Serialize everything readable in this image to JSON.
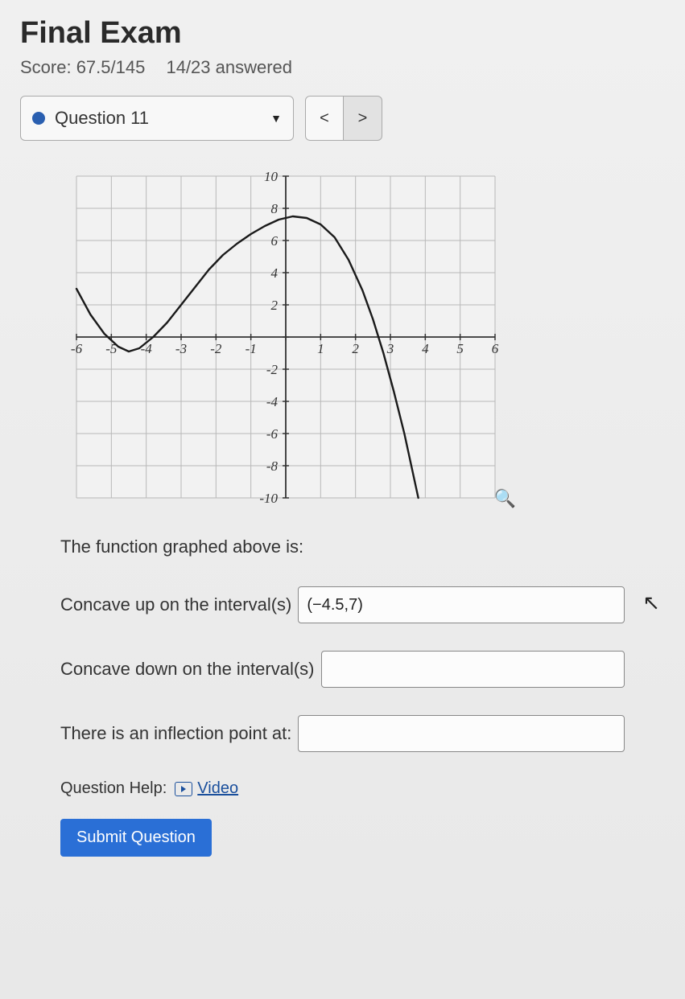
{
  "header": {
    "title": "Final Exam",
    "score_label": "Score: 67.5/145",
    "answered_label": "14/23 answered"
  },
  "nav": {
    "question_label": "Question 11",
    "prev_glyph": "<",
    "next_glyph": ">"
  },
  "graph": {
    "type": "line",
    "xlim": [
      -6,
      6
    ],
    "ylim": [
      -10,
      10
    ],
    "xtick_step": 1,
    "ytick_step": 2,
    "x_ticks": [
      -6,
      -5,
      -4,
      -3,
      -2,
      -1,
      1,
      2,
      3,
      4,
      5,
      6
    ],
    "y_ticks": [
      -10,
      -8,
      -6,
      -4,
      -2,
      2,
      4,
      6,
      8,
      10
    ],
    "grid_color": "#b8b8b8",
    "axis_color": "#333333",
    "curve_color": "#1a1a1a",
    "curve_width": 2.4,
    "background_color": "#f2f2f2",
    "label_font": "italic 17px serif",
    "label_color": "#333333",
    "points": [
      [
        -6.0,
        3.0
      ],
      [
        -5.6,
        1.4
      ],
      [
        -5.2,
        0.2
      ],
      [
        -4.8,
        -0.6
      ],
      [
        -4.5,
        -0.9
      ],
      [
        -4.2,
        -0.7
      ],
      [
        -3.8,
        0.0
      ],
      [
        -3.4,
        0.9
      ],
      [
        -3.0,
        2.0
      ],
      [
        -2.6,
        3.1
      ],
      [
        -2.2,
        4.2
      ],
      [
        -1.8,
        5.1
      ],
      [
        -1.4,
        5.8
      ],
      [
        -1.0,
        6.4
      ],
      [
        -0.6,
        6.9
      ],
      [
        -0.2,
        7.3
      ],
      [
        0.2,
        7.5
      ],
      [
        0.6,
        7.4
      ],
      [
        1.0,
        7.0
      ],
      [
        1.4,
        6.2
      ],
      [
        1.8,
        4.8
      ],
      [
        2.2,
        2.9
      ],
      [
        2.5,
        1.1
      ],
      [
        2.8,
        -1.0
      ],
      [
        3.1,
        -3.4
      ],
      [
        3.4,
        -6.0
      ],
      [
        3.6,
        -8.0
      ],
      [
        3.8,
        -10.0
      ]
    ]
  },
  "question": {
    "prompt": "The function graphed above is:",
    "rows": [
      {
        "label": "Concave up on the interval(s)",
        "value": "(−4.5,7)",
        "placeholder": ""
      },
      {
        "label": "Concave down on the interval(s)",
        "value": "",
        "placeholder": ""
      },
      {
        "label": "There is an inflection point at:",
        "value": "",
        "placeholder": ""
      }
    ],
    "help_label": "Question Help:",
    "video_label": "Video",
    "submit_label": "Submit Question"
  }
}
